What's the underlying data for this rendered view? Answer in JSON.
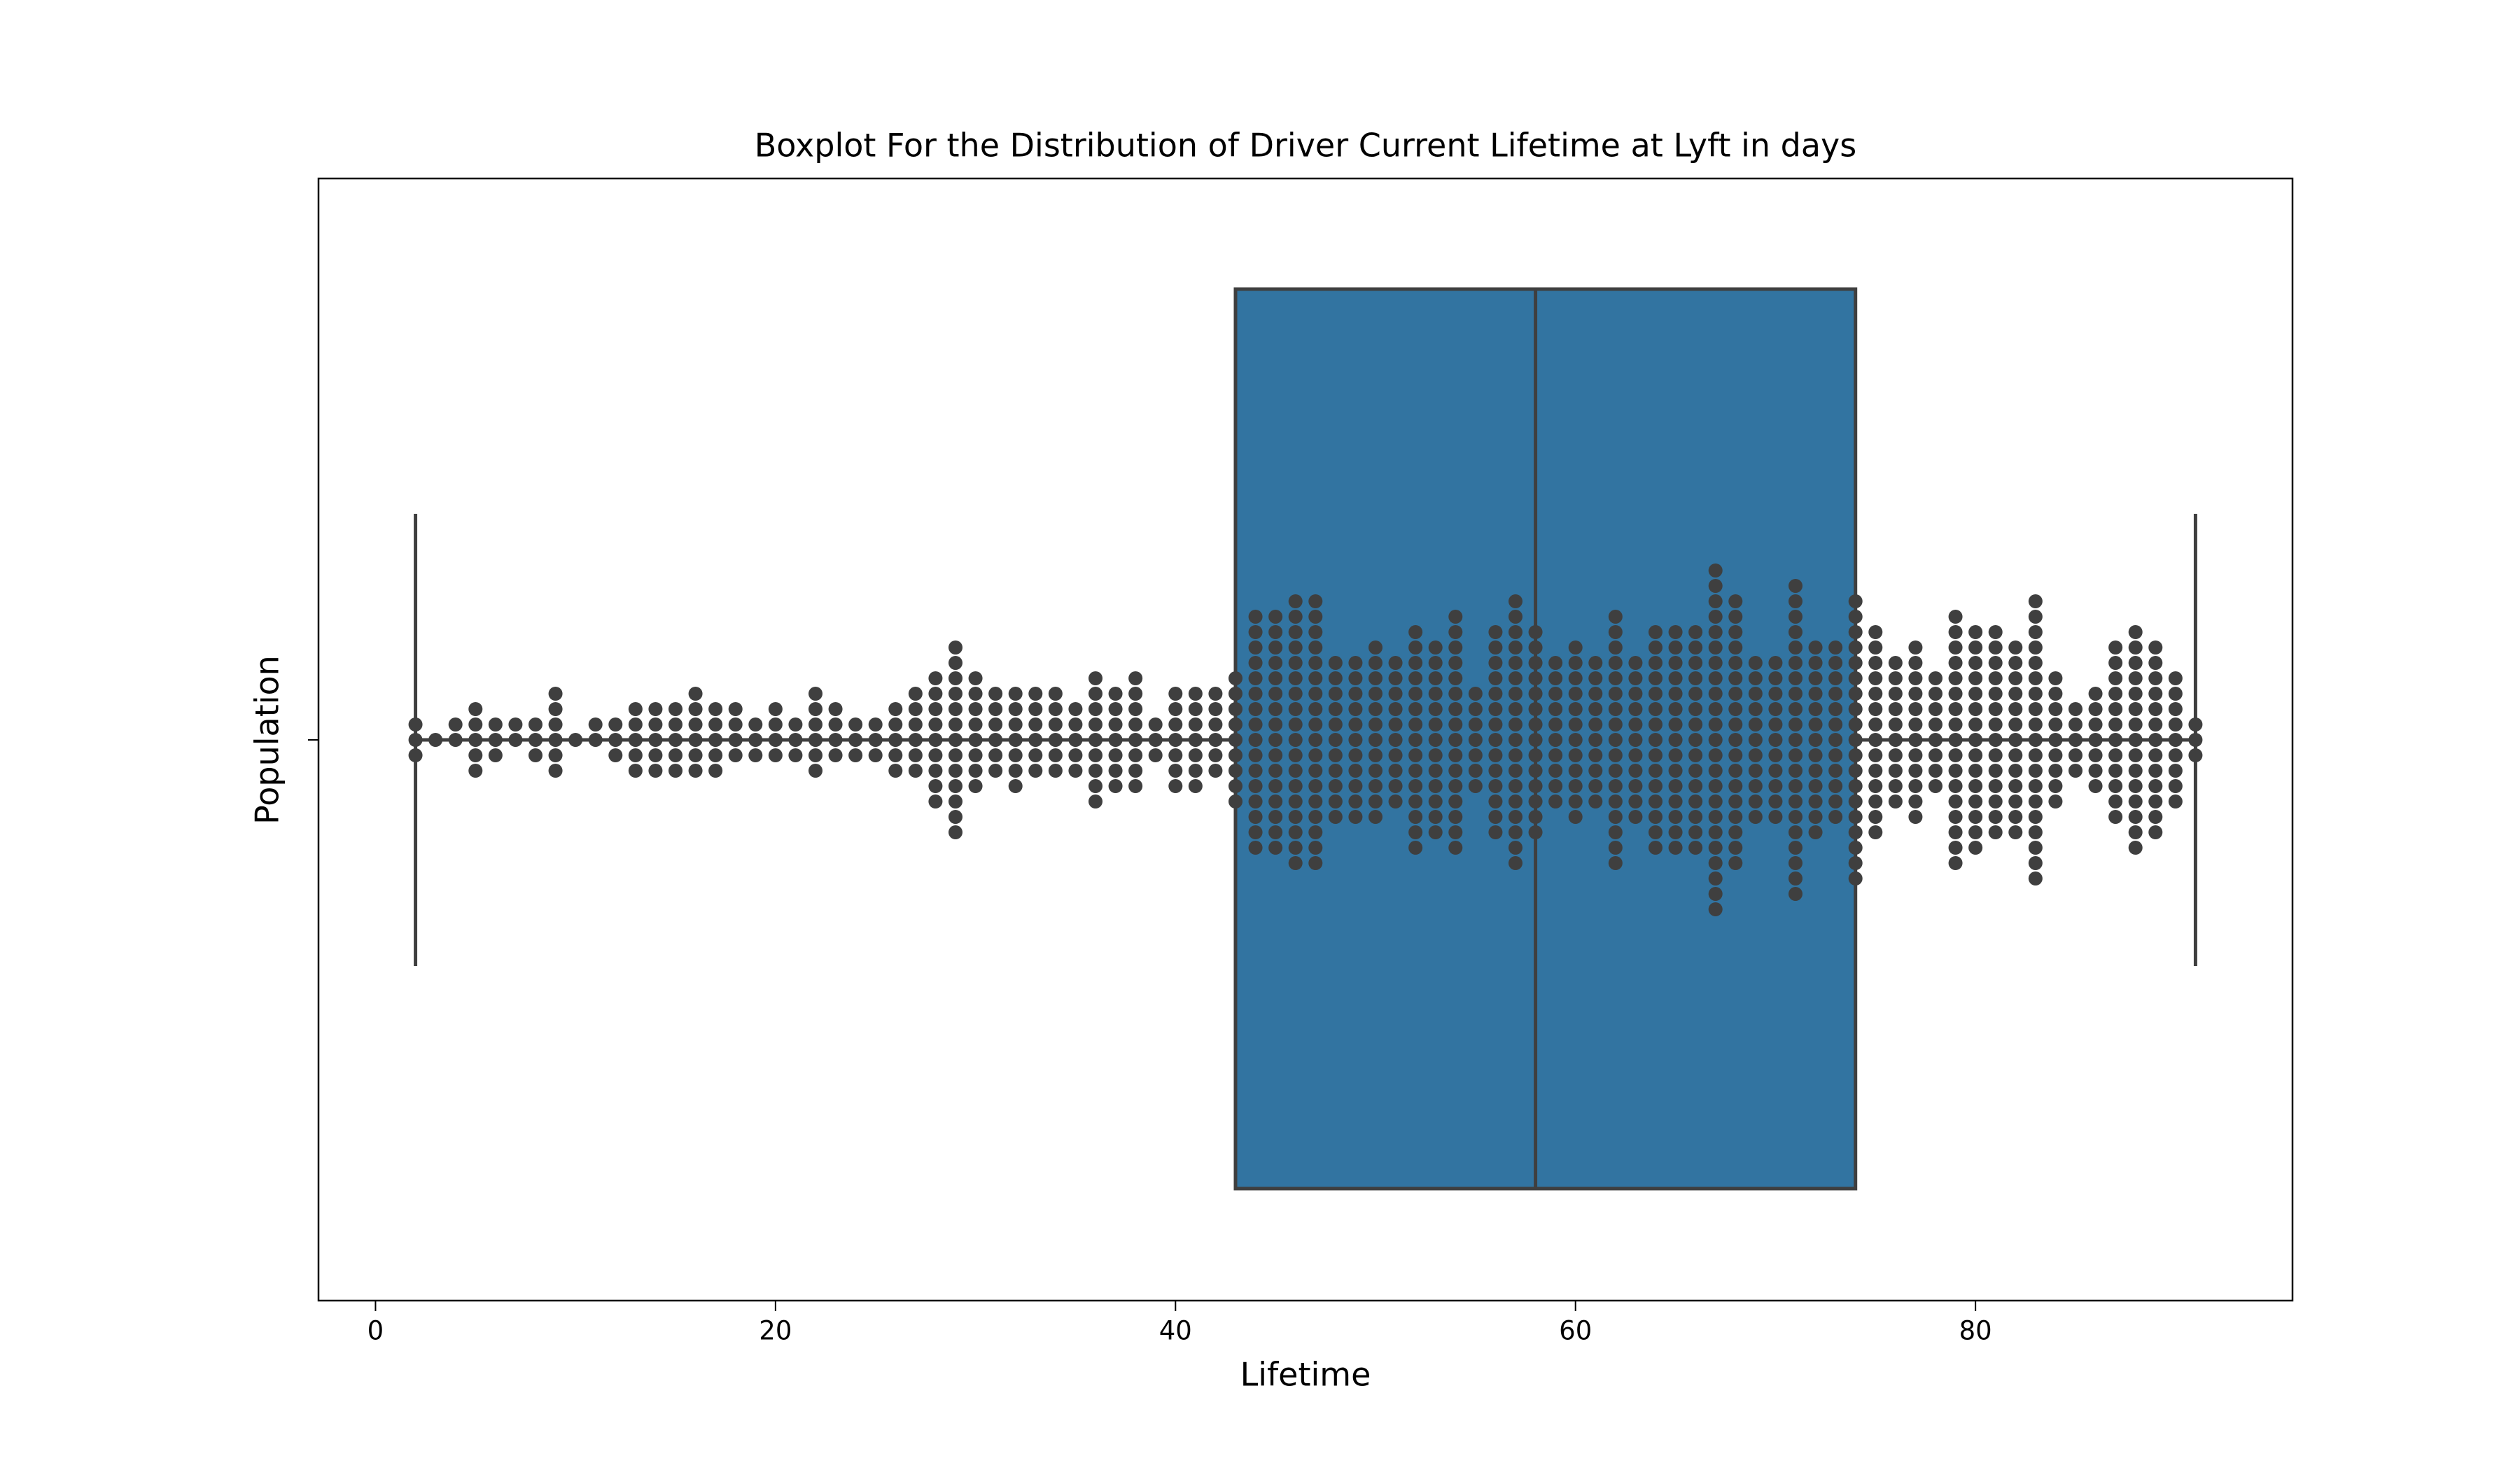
{
  "chart_data": {
    "type": "box",
    "title": "Boxplot For the Distribution of Driver Current Lifetime at Lyft in days",
    "xlabel": "Lifetime",
    "ylabel": "Population",
    "color": "#3274a1",
    "edge_color": "#3f3f3f",
    "stats": {
      "whislo": 2,
      "q1": 43,
      "med": 58,
      "q3": 74,
      "whishi": 91
    },
    "swarm": {
      "color": "#3f3f3f",
      "x": [
        2,
        3,
        4,
        5,
        6,
        7,
        8,
        9,
        10,
        11,
        12,
        13,
        14,
        15,
        16,
        17,
        18,
        19,
        20,
        21,
        22,
        23,
        24,
        25,
        26,
        27,
        28,
        29,
        30,
        31,
        32,
        33,
        34,
        35,
        36,
        37,
        38,
        39,
        40,
        41,
        42,
        43,
        44,
        45,
        46,
        47,
        48,
        49,
        50,
        51,
        52,
        53,
        54,
        55,
        56,
        57,
        58,
        59,
        60,
        61,
        62,
        63,
        64,
        65,
        66,
        67,
        68,
        69,
        70,
        71,
        72,
        73,
        74,
        75,
        76,
        77,
        78,
        79,
        80,
        81,
        82,
        83,
        84,
        85,
        86,
        87,
        88,
        89,
        90,
        91
      ],
      "counts": [
        3,
        1,
        2,
        5,
        3,
        2,
        3,
        6,
        1,
        2,
        3,
        5,
        5,
        5,
        6,
        5,
        4,
        3,
        4,
        3,
        6,
        4,
        3,
        3,
        5,
        6,
        9,
        13,
        8,
        6,
        7,
        6,
        6,
        5,
        9,
        7,
        8,
        3,
        7,
        7,
        6,
        9,
        16,
        16,
        18,
        18,
        11,
        11,
        12,
        10,
        15,
        13,
        16,
        7,
        14,
        18,
        14,
        10,
        12,
        10,
        17,
        11,
        15,
        15,
        15,
        23,
        18,
        11,
        11,
        21,
        13,
        12,
        19,
        14,
        10,
        12,
        8,
        17,
        15,
        14,
        13,
        19,
        9,
        5,
        7,
        12,
        15,
        13,
        9,
        3
      ]
    },
    "xlim": [
      -2.85,
      95.85
    ],
    "xticks": [
      0,
      20,
      40,
      60,
      80
    ]
  }
}
